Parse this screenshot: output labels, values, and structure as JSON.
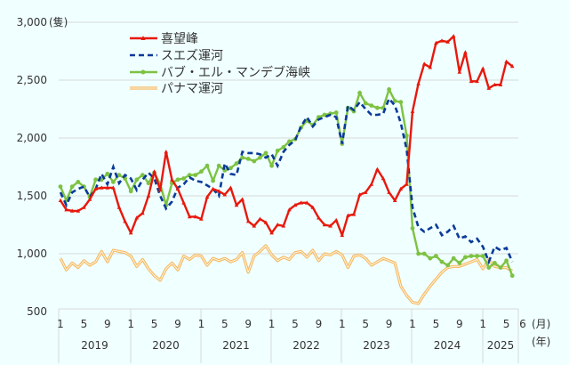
{
  "chart_data": {
    "type": "line",
    "ylabel": "(隻)",
    "xlabel_month": "(月)",
    "xlabel_year": "(年)",
    "ylim": [
      500,
      3000
    ],
    "yticks": [
      "500",
      "1,000",
      "1,500",
      "2,000",
      "2,500",
      "3,000"
    ],
    "ytick_values": [
      500,
      1000,
      1500,
      2000,
      2500,
      3000
    ],
    "grid": true,
    "legend_placement": "top-left",
    "x_start": "2019-01",
    "x_end": "2025-06",
    "month_ticks": [
      "1",
      "5",
      "9"
    ],
    "last_month_tick": "6",
    "years": [
      "2019",
      "2020",
      "2021",
      "2022",
      "2023",
      "2024",
      "2025"
    ],
    "series": [
      {
        "name": "喜望峰",
        "color": "#e8180c",
        "style": "solid-triangle",
        "values": [
          1460,
          1380,
          1370,
          1370,
          1400,
          1470,
          1560,
          1570,
          1570,
          1570,
          1400,
          1280,
          1180,
          1310,
          1350,
          1500,
          1710,
          1550,
          1880,
          1640,
          1560,
          1440,
          1320,
          1320,
          1300,
          1490,
          1560,
          1540,
          1510,
          1570,
          1420,
          1470,
          1280,
          1240,
          1300,
          1270,
          1180,
          1250,
          1240,
          1380,
          1420,
          1440,
          1440,
          1400,
          1310,
          1250,
          1240,
          1290,
          1160,
          1330,
          1340,
          1510,
          1530,
          1600,
          1730,
          1650,
          1530,
          1460,
          1560,
          1600,
          2230,
          2470,
          2640,
          2610,
          2820,
          2840,
          2830,
          2880,
          2570,
          2740,
          2490,
          2490,
          2600,
          2430,
          2460,
          2460,
          2660,
          2620
        ]
      },
      {
        "name": "スエズ運河",
        "color": "#0a3a9a",
        "style": "dashed",
        "values": [
          1530,
          1420,
          1530,
          1560,
          1580,
          1490,
          1560,
          1690,
          1600,
          1750,
          1610,
          1680,
          1650,
          1550,
          1640,
          1700,
          1650,
          1500,
          1390,
          1450,
          1570,
          1600,
          1660,
          1630,
          1620,
          1590,
          1560,
          1500,
          1780,
          1690,
          1680,
          1880,
          1870,
          1870,
          1860,
          1830,
          1860,
          1760,
          1880,
          1940,
          1980,
          2100,
          2180,
          2100,
          2160,
          2180,
          2200,
          2180,
          1950,
          2280,
          2240,
          2310,
          2250,
          2200,
          2200,
          2210,
          2340,
          2280,
          2130,
          1900,
          1400,
          1230,
          1190,
          1220,
          1250,
          1160,
          1190,
          1240,
          1130,
          1150,
          1100,
          1130,
          1060,
          930,
          1060,
          1030,
          1050,
          930
        ]
      },
      {
        "name": "バブ・エル・マンデブ海峡",
        "color": "#7dc242",
        "style": "solid-dot",
        "values": [
          1580,
          1460,
          1580,
          1620,
          1580,
          1490,
          1640,
          1640,
          1690,
          1620,
          1680,
          1650,
          1540,
          1640,
          1680,
          1610,
          1700,
          1600,
          1420,
          1610,
          1640,
          1650,
          1680,
          1680,
          1710,
          1760,
          1630,
          1760,
          1720,
          1740,
          1780,
          1830,
          1820,
          1800,
          1830,
          1870,
          1760,
          1890,
          1920,
          1970,
          1990,
          2090,
          2150,
          2110,
          2180,
          2200,
          2210,
          2220,
          1950,
          2260,
          2230,
          2390,
          2300,
          2280,
          2260,
          2260,
          2420,
          2320,
          2310,
          2020,
          1220,
          1000,
          1000,
          960,
          980,
          930,
          900,
          960,
          920,
          970,
          980,
          980,
          980,
          880,
          920,
          880,
          940,
          810
        ]
      },
      {
        "name": "パナマ運河",
        "color": "#f5b860",
        "style": "double",
        "values": [
          960,
          860,
          920,
          880,
          940,
          900,
          930,
          1020,
          930,
          1030,
          1020,
          1010,
          980,
          890,
          950,
          870,
          810,
          770,
          870,
          920,
          860,
          980,
          950,
          990,
          980,
          900,
          960,
          940,
          960,
          930,
          950,
          1010,
          840,
          980,
          1020,
          1070,
          990,
          940,
          970,
          950,
          1010,
          1020,
          970,
          1030,
          940,
          1000,
          990,
          1020,
          990,
          880,
          980,
          990,
          960,
          900,
          930,
          960,
          940,
          920,
          720,
          640,
          580,
          570,
          650,
          720,
          780,
          840,
          880,
          890,
          890,
          910,
          930,
          950,
          870,
          950,
          890,
          880,
          880,
          850
        ]
      }
    ]
  }
}
